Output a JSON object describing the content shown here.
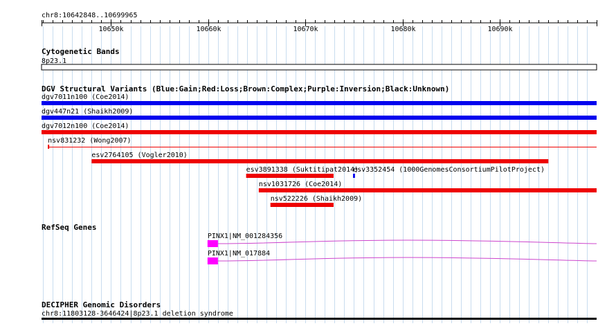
{
  "ruler": {
    "range_label": "chr8:10642848..10699965",
    "start": 10642848,
    "end": 10699965,
    "ticks": [
      {
        "pos": 10650000,
        "label": "10650k"
      },
      {
        "pos": 10660000,
        "label": "10660k"
      },
      {
        "pos": 10670000,
        "label": "10670k"
      },
      {
        "pos": 10680000,
        "label": "10680k"
      },
      {
        "pos": 10690000,
        "label": "10690k"
      }
    ],
    "minor_step": 1000
  },
  "tracks": {
    "cytoband": {
      "title": "Cytogenetic Bands",
      "band_label": "8p23.1"
    },
    "dgv": {
      "title": "DGV Structural Variants (Blue:Gain;Red:Loss;Brown:Complex;Purple:Inversion;Black:Unknown)",
      "colors": {
        "gain": "#0000ee",
        "loss": "#ee0000"
      },
      "features": [
        {
          "name": "dgv7011n100 (Coe2014)",
          "type": "gain",
          "start": 10642848,
          "end": 10699965,
          "thick": true
        },
        {
          "name": "dgv447n21 (Shaikh2009)",
          "type": "gain",
          "start": 10642848,
          "end": 10699965,
          "thick": true
        },
        {
          "name": "dgv7012n100 (Coe2014)",
          "type": "loss",
          "start": 10642848,
          "end": 10699965,
          "thick": true
        },
        {
          "name": "nsv831232 (Wong2007)",
          "type": "loss",
          "start": 10643500,
          "end": 10699965,
          "thick": false
        },
        {
          "name": "esv2764105 (Vogler2010)",
          "type": "loss",
          "start": 10648000,
          "end": 10695000,
          "thick": true
        },
        {
          "name": "esv3891338 (Suktitipat2014)",
          "type": "loss",
          "start": 10663900,
          "end": 10672900,
          "thick": true
        },
        {
          "name": "esv3352454 (1000GenomesConsortiumPilotProject)",
          "type": "gain",
          "start": 10674900,
          "end": 10675100,
          "thick": true
        },
        {
          "name": "nsv1031726 (Coe2014)",
          "type": "loss",
          "start": 10665200,
          "end": 10699965,
          "thick": true
        },
        {
          "name": "nsv522226 (Shaikh2009)",
          "type": "loss",
          "start": 10666400,
          "end": 10672900,
          "thick": true
        }
      ]
    },
    "refseq": {
      "title": "RefSeq Genes",
      "exon_color": "#ff00ff",
      "intron_color": "#cc44cc",
      "genes": [
        {
          "label": "PINX1|NM_001284356",
          "start": 10660000,
          "end": 10699965,
          "exon_end": 10661000
        },
        {
          "label": "PINX1|NM_017884",
          "start": 10660000,
          "end": 10699965,
          "exon_end": 10661000
        }
      ]
    },
    "decipher": {
      "title": "DECIPHER Genomic Disorders",
      "feature_label": "chr8:11803128-3646424|8p23.1 deletion syndrome"
    }
  }
}
